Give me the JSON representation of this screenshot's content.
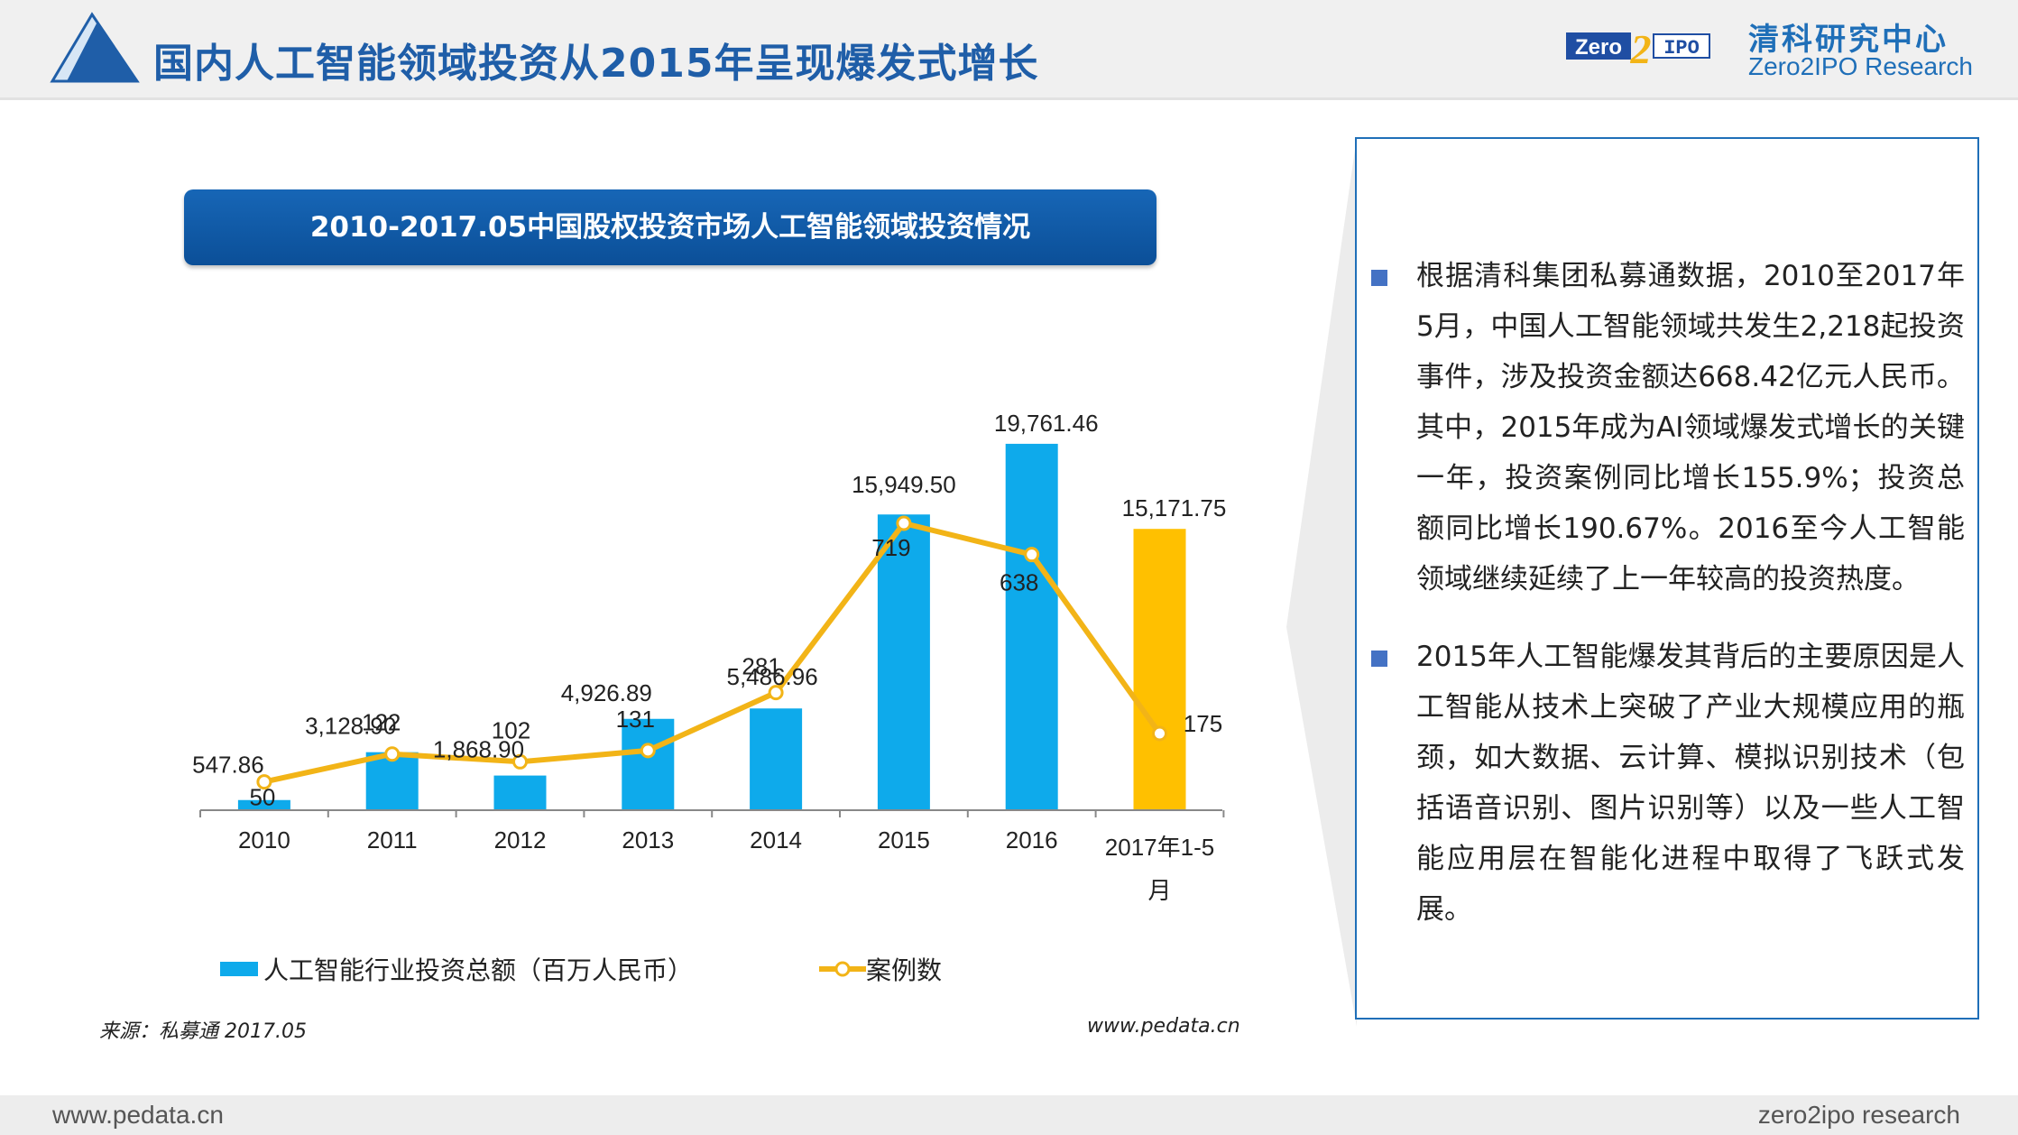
{
  "header": {
    "title": "国内人工智能领域投资从2015年呈现爆发式增长",
    "brand_logo_text_left": "Zero",
    "brand_logo_text_mid": "2",
    "brand_logo_text_right": "IPO",
    "brand_cn": "清科研究中心",
    "brand_en": "Zero2IPO Research"
  },
  "colors": {
    "title_blue": "#1f5ea8",
    "bar_blue": "#0eaaeb",
    "bar_highlight": "#ffc000",
    "line_gold": "#f2b417"
  },
  "chart_data": {
    "type": "bar",
    "title": "2010-2017.05中国股权投资市场人工智能领域投资情况",
    "categories": [
      "2010",
      "2011",
      "2012",
      "2013",
      "2014",
      "2015",
      "2016",
      "2017年1-5月"
    ],
    "series": [
      {
        "name": "人工智能行业投资总额（百万人民币）",
        "type": "bar",
        "values": [
          547.86,
          3128.9,
          1868.9,
          4926.89,
          5486.96,
          15949.5,
          19761.46,
          15171.75
        ],
        "labels": [
          "547.86",
          "3,128.90",
          "1,868.90",
          "4,926.89",
          "5,486.96",
          "15,949.50",
          "19,761.46",
          "15,171.75"
        ]
      },
      {
        "name": "案例数",
        "type": "line",
        "values": [
          50,
          122,
          102,
          131,
          281,
          719,
          638,
          175
        ],
        "labels": [
          "50",
          "122",
          "102",
          "131",
          "281",
          "719",
          "638",
          "175"
        ]
      }
    ],
    "highlight_category": "2017年1-5月",
    "grid": false,
    "legend_position": "bottom"
  },
  "source": {
    "left": "来源：私募通 2017.05",
    "right": "www.pedata.cn"
  },
  "panel": {
    "bullets": [
      "根据清科集团私募通数据，2010至2017年5月，中国人工智能领域共发生2,218起投资事件，涉及投资金额达668.42亿元人民币。其中，2015年成为AI领域爆发式增长的关键一年，投资案例同比增长155.9%；投资总额同比增长190.67%。2016至今人工智能领域继续延续了上一年较高的投资热度。",
      "2015年人工智能爆发其背后的主要原因是人工智能从技术上突破了产业大规模应用的瓶颈，如大数据、云计算、模拟识别技术（包括语音识别、图片识别等）以及一些人工智能应用层在智能化进程中取得了飞跃式发展。"
    ]
  },
  "footer": {
    "left": "www.pedata.cn",
    "right": "zero2ipo research"
  }
}
